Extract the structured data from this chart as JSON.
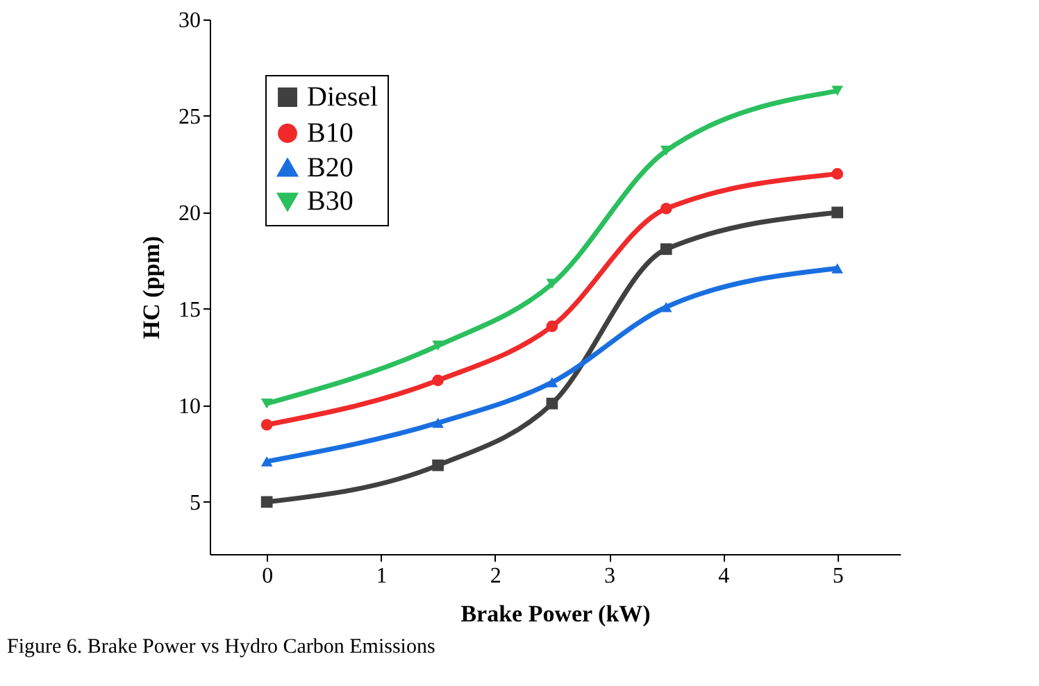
{
  "chart_data": {
    "type": "line",
    "xlabel": "Brake Power (kW)",
    "ylabel": "HC (ppm)",
    "x": [
      0,
      1.5,
      2.5,
      3.5,
      5
    ],
    "series": [
      {
        "name": "Diesel",
        "color": "#404040",
        "marker": "square",
        "values": [
          5,
          6.9,
          10.1,
          18.1,
          20
        ]
      },
      {
        "name": "B10",
        "color": "#f02a2a",
        "marker": "circle",
        "values": [
          9,
          11.3,
          14.1,
          20.2,
          22
        ]
      },
      {
        "name": "B20",
        "color": "#1a6fe0",
        "marker": "triangle",
        "values": [
          7.1,
          9.1,
          11.2,
          15.1,
          17.1
        ]
      },
      {
        "name": "B30",
        "color": "#2bbf5e",
        "marker": "triangle-down",
        "values": [
          10.1,
          13.1,
          16.3,
          23.2,
          26.3
        ]
      }
    ],
    "xlim": [
      -0.5,
      5.55
    ],
    "xticks": [
      0,
      1,
      2,
      3,
      4,
      5
    ],
    "ylim": [
      2.3,
      30
    ],
    "yticks": [
      5,
      10,
      15,
      20,
      25,
      30
    ],
    "grid": false,
    "legend": "top left",
    "line_style": "solid",
    "annotations": [
      "Figure 6. Brake Power vs Hydro Carbon Emissions"
    ]
  }
}
